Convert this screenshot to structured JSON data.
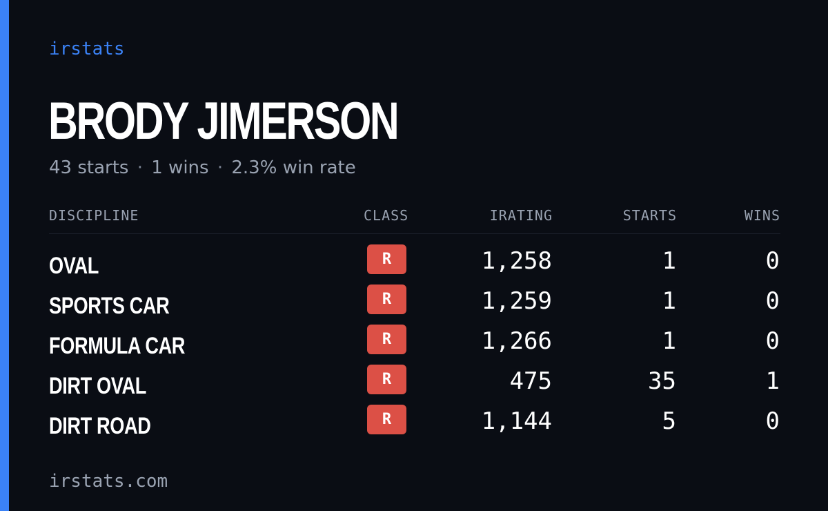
{
  "brand": "irstats",
  "driver": {
    "name": "BRODY JIMERSON",
    "starts": "43 starts",
    "wins": "1 wins",
    "win_rate": "2.3% win rate",
    "separator": "·"
  },
  "table": {
    "headers": {
      "discipline": "DISCIPLINE",
      "class": "CLASS",
      "irating": "IRATING",
      "starts": "STARTS",
      "wins": "WINS"
    },
    "rows": [
      {
        "discipline": "OVAL",
        "class": "R",
        "irating": "1,258",
        "starts": "1",
        "wins": "0"
      },
      {
        "discipline": "SPORTS CAR",
        "class": "R",
        "irating": "1,259",
        "starts": "1",
        "wins": "0"
      },
      {
        "discipline": "FORMULA CAR",
        "class": "R",
        "irating": "1,266",
        "starts": "1",
        "wins": "0"
      },
      {
        "discipline": "DIRT OVAL",
        "class": "R",
        "irating": "475",
        "starts": "35",
        "wins": "1"
      },
      {
        "discipline": "DIRT ROAD",
        "class": "R",
        "irating": "1,144",
        "starts": "5",
        "wins": "0"
      }
    ]
  },
  "footer": "irstats.com",
  "colors": {
    "background": "#0a0d14",
    "accent": "#3b82f6",
    "class_badge": "#dc5046",
    "muted_text": "#9aa3b2"
  }
}
